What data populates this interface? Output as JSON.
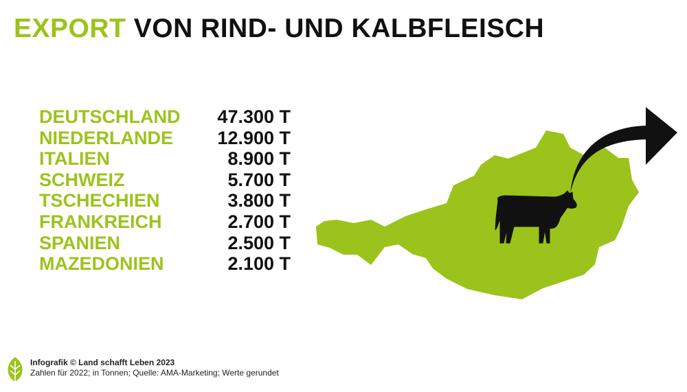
{
  "header": {
    "title_highlight": "EXPORT",
    "title_rest": "VON RIND- UND KALBFLEISCH"
  },
  "table": {
    "rows": [
      [
        "DEUTSCHLAND",
        "47.300 T"
      ],
      [
        "NIEDERLANDE",
        "12.900 T"
      ],
      [
        "ITALIEN",
        "8.900 T"
      ],
      [
        "SCHWEIZ",
        "5.700 T"
      ],
      [
        "TSCHECHIEN",
        "3.800 T"
      ],
      [
        "FRANKREICH",
        "2.700 T"
      ],
      [
        "SPANIEN",
        "2.500 T"
      ],
      [
        "MAZEDONIEN",
        "2.100 T"
      ]
    ]
  },
  "footer": {
    "credit": "Infografik © Land schafft Leben 2023",
    "note": "Zahlen für 2022; in Tonnen; Quelle: AMA-Marketing; Werte gerundet"
  }
}
